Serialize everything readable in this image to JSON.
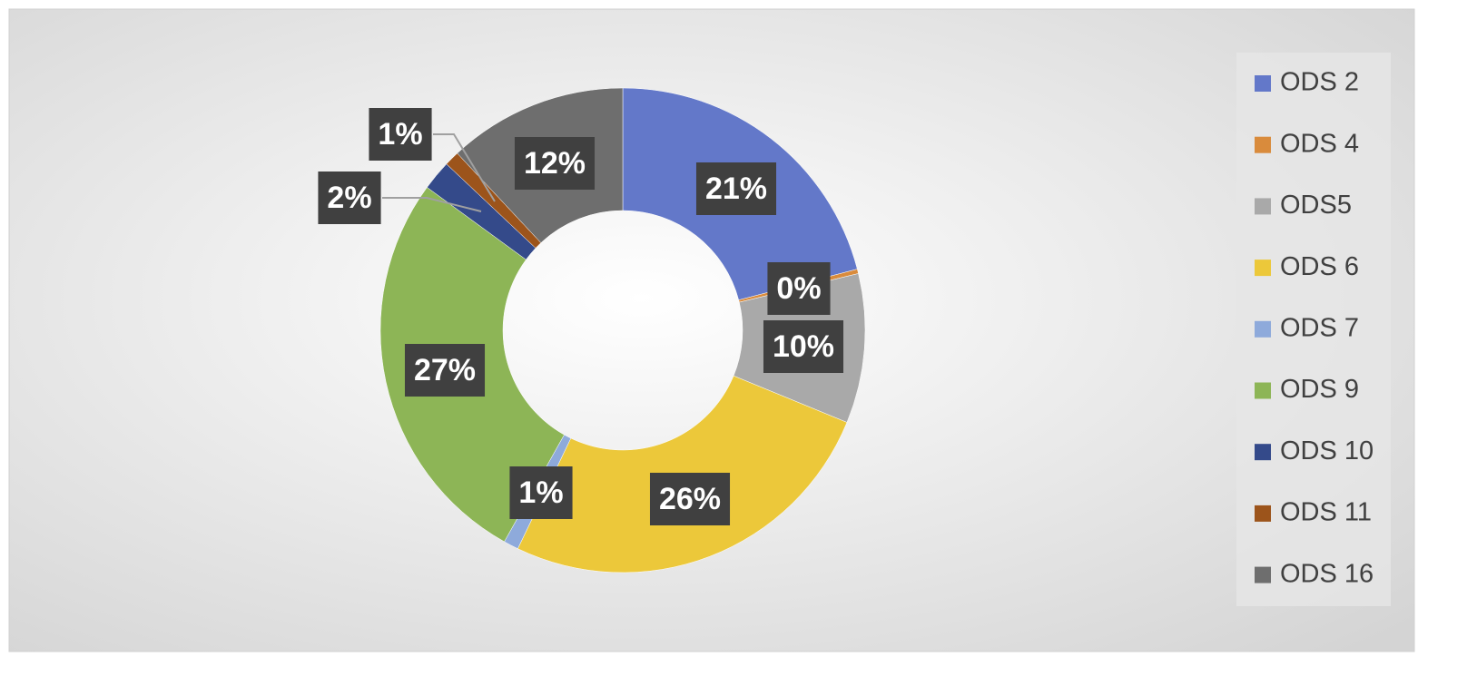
{
  "chart_data": {
    "type": "donut",
    "categories": [
      "ODS 2",
      "ODS 4",
      "ODS5",
      "ODS 6",
      "ODS 7",
      "ODS 9",
      "ODS 10",
      "ODS 11",
      "ODS 16"
    ],
    "values": [
      21,
      0.3,
      10,
      26,
      1,
      27,
      2,
      1,
      12
    ],
    "value_labels": [
      "21%",
      "0%",
      "10%",
      "26%",
      "1%",
      "27%",
      "2%",
      "1%",
      "12%"
    ],
    "colors": [
      "#6378c9",
      "#d98b3c",
      "#a9a9a9",
      "#ecc83a",
      "#8eaadb",
      "#8db556",
      "#344a8a",
      "#9c541b",
      "#6e6e6e"
    ],
    "legend": "right"
  }
}
